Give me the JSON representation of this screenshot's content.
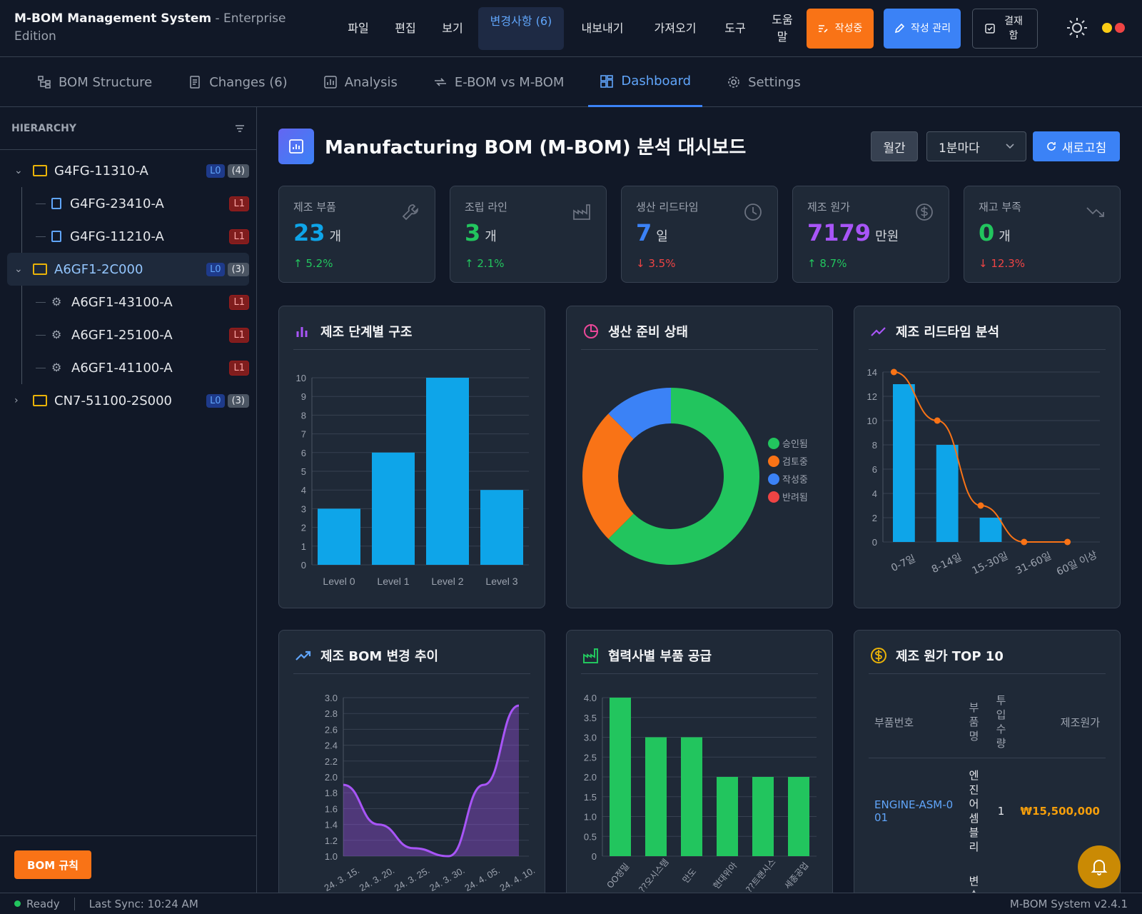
{
  "app": {
    "title": "M-BOM Management System",
    "edition": " - Enterprise Edition"
  },
  "menu": [
    {
      "label": "파일"
    },
    {
      "label": "편집"
    },
    {
      "label": "보기"
    },
    {
      "label": "변경사항 (6)"
    },
    {
      "label": "내보내기"
    },
    {
      "label": "가져오기"
    },
    {
      "label": "도구"
    },
    {
      "label": "도움말"
    }
  ],
  "toolbar": {
    "drafting": "작성중",
    "manage": "작성 관리",
    "approval": "결재함"
  },
  "colors": {
    "accent": "#3b82f6",
    "orange": "#f97316",
    "green": "#22c55e",
    "purple": "#a855f7",
    "red": "#ef4444",
    "cyan": "#0ea5e9"
  },
  "tabs": [
    {
      "label": "BOM Structure",
      "icon": "hierarchy-icon"
    },
    {
      "label": "Changes (6)",
      "icon": "document-icon"
    },
    {
      "label": "Analysis",
      "icon": "chart-icon"
    },
    {
      "label": "E-BOM vs M-BOM",
      "icon": "compare-icon"
    },
    {
      "label": "Dashboard",
      "icon": "dashboard-icon"
    },
    {
      "label": "Settings",
      "icon": "gear-icon"
    }
  ],
  "sidebar": {
    "header": "HIERARCHY",
    "tree": [
      {
        "label": "G4FG-11310-A",
        "level": "L0",
        "count": "(4)",
        "expanded": true,
        "children": [
          {
            "label": "G4FG-23410-A",
            "level": "L1",
            "icon": "file-icon"
          },
          {
            "label": "G4FG-11210-A",
            "level": "L1",
            "icon": "file-icon"
          }
        ]
      },
      {
        "label": "A6GF1-2C000",
        "level": "L0",
        "count": "(3)",
        "expanded": true,
        "selected": true,
        "children": [
          {
            "label": "A6GF1-43100-A",
            "level": "L1",
            "icon": "gear-icon"
          },
          {
            "label": "A6GF1-25100-A",
            "level": "L1",
            "icon": "gear-icon"
          },
          {
            "label": "A6GF1-41100-A",
            "level": "L1",
            "icon": "gear-icon"
          }
        ]
      },
      {
        "label": "CN7-51100-2S000",
        "level": "L0",
        "count": "(3)",
        "expanded": false,
        "children": []
      }
    ],
    "footer_button": "BOM 규칙"
  },
  "dashboard": {
    "title": "Manufacturing BOM (M-BOM) 분석 대시보드",
    "period": "월간",
    "refresh_interval": "1분마다",
    "refresh_label": "새로고침",
    "kpis": [
      {
        "label": "제조 부품",
        "value": "23",
        "unit": "개",
        "delta": "↑ 5.2%",
        "color": "#0ea5e9",
        "delta_color": "#22c55e",
        "icon": "wrench-icon"
      },
      {
        "label": "조립 라인",
        "value": "3",
        "unit": "개",
        "delta": "↑ 2.1%",
        "color": "#22c55e",
        "delta_color": "#22c55e",
        "icon": "factory-icon"
      },
      {
        "label": "생산 리드타임",
        "value": "7",
        "unit": "일",
        "delta": "↓ 3.5%",
        "color": "#3b82f6",
        "delta_color": "#ef4444",
        "icon": "clock-icon"
      },
      {
        "label": "제조 원가",
        "value": "7179",
        "unit": "만원",
        "delta": "↑ 8.7%",
        "color": "#a855f7",
        "delta_color": "#22c55e",
        "icon": "dollar-icon"
      },
      {
        "label": "재고 부족",
        "value": "0",
        "unit": "개",
        "delta": "↓ 12.3%",
        "color": "#22c55e",
        "delta_color": "#ef4444",
        "icon": "trending-down-icon"
      }
    ],
    "card_titles": {
      "stage": "제조 단계별 구조",
      "readiness": "생산 준비 상태",
      "leadtime": "제조 리드타임 분석",
      "trend": "제조 BOM 변경 추이",
      "supplier": "협력사별 부품 공급",
      "cost": "제조 원가 TOP 10"
    },
    "cost_table": {
      "headers": [
        "부품번호",
        "부품명",
        "투입수량",
        "제조원가"
      ],
      "rows": [
        {
          "part_no": "ENGINE-ASM-001",
          "name": "엔진어셈블리",
          "qty": "1",
          "cost": "₩15,500,000"
        }
      ],
      "next_row_partial": "변속"
    }
  },
  "chart_data": [
    {
      "type": "bar",
      "title": "제조 단계별 구조",
      "categories": [
        "Level 0",
        "Level 1",
        "Level 2",
        "Level 3"
      ],
      "values": [
        3,
        6,
        10,
        4
      ],
      "ylim": [
        0,
        10
      ],
      "yticks": [
        "0",
        "1",
        "2",
        "3",
        "4",
        "5",
        "6",
        "7",
        "8",
        "9",
        "10"
      ],
      "color": "#0ea5e9",
      "grid": true
    },
    {
      "type": "pie",
      "title": "생산 준비 상태",
      "donut": true,
      "labels": [
        "승인됨",
        "검토중",
        "작성중",
        "반려됨"
      ],
      "values": [
        15,
        6,
        3,
        0
      ],
      "colors": [
        "#22c55e",
        "#f97316",
        "#3b82f6",
        "#ef4444"
      ],
      "legend": "right"
    },
    {
      "type": "bar",
      "title": "제조 리드타임 분석",
      "categories": [
        "0-7일",
        "8-14일",
        "15-30일",
        "31-60일",
        "60일 이상"
      ],
      "values": [
        13,
        8,
        2,
        0,
        0
      ],
      "line_values": [
        14,
        10,
        3,
        0,
        0
      ],
      "ylim": [
        0,
        14
      ],
      "yticks": [
        "0",
        "2",
        "4",
        "6",
        "8",
        "10",
        "12",
        "14"
      ],
      "bar_color": "#0ea5e9",
      "line_color": "#f97316",
      "grid": true
    },
    {
      "type": "area",
      "title": "제조 BOM 변경 추이",
      "x": [
        "24. 3. 15.",
        "24. 3. 20.",
        "24. 3. 25.",
        "24. 3. 30.",
        "24. 4. 05.",
        "24. 4. 10."
      ],
      "values": [
        1.9,
        1.4,
        1.1,
        1.0,
        1.9,
        2.9
      ],
      "ylim": [
        1.0,
        3.0
      ],
      "yticks": [
        "1.0",
        "1.2",
        "1.4",
        "1.6",
        "1.8",
        "2.0",
        "2.2",
        "2.4",
        "2.6",
        "2.8",
        "3.0"
      ],
      "color": "#a855f7",
      "grid": true
    },
    {
      "type": "bar",
      "title": "협력사별 부품 공급",
      "categories": [
        "OO정밀",
        "??오시스템",
        "만도",
        "현대위아",
        "??트랜시스",
        "세종공업"
      ],
      "values": [
        4,
        3,
        3,
        2,
        2,
        2
      ],
      "ylim": [
        0,
        4
      ],
      "yticks": [
        "0",
        "0.5",
        "1.0",
        "1.5",
        "2.0",
        "2.5",
        "3.0",
        "3.5",
        "4.0"
      ],
      "color": "#22c55e",
      "grid": true
    }
  ],
  "status": {
    "state": "Ready",
    "sync": "Last Sync: 10:24 AM",
    "version": "M-BOM System v2.4.1"
  }
}
